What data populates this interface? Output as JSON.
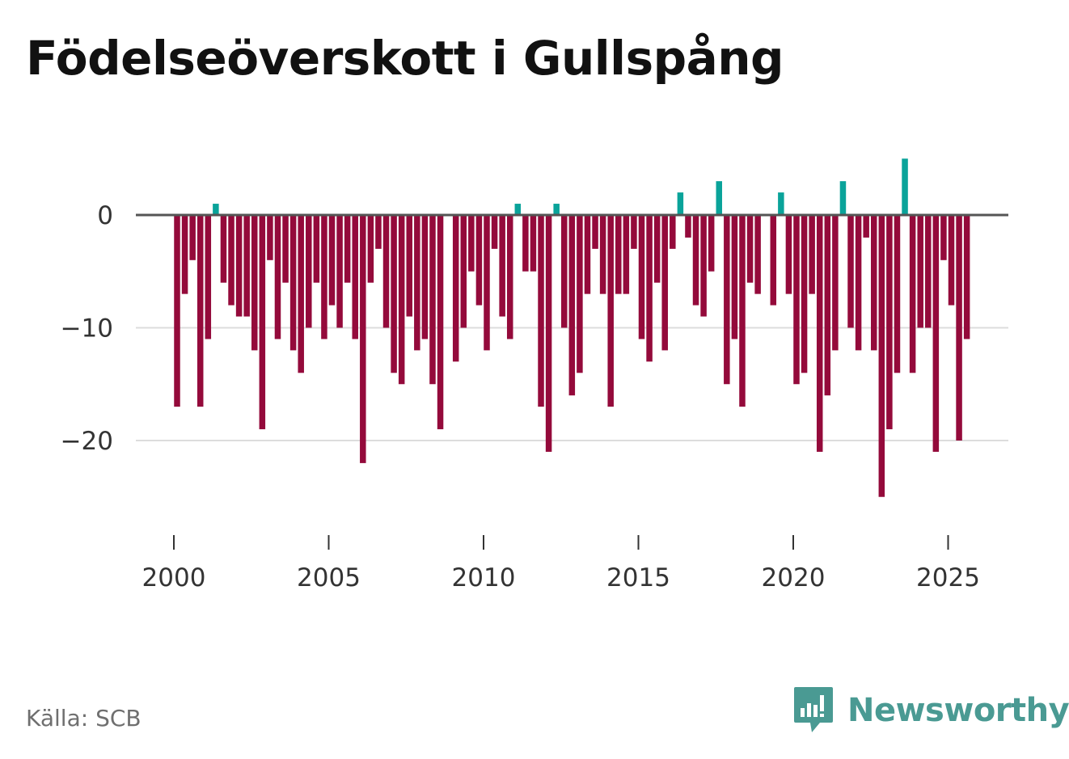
{
  "title": "Födelseöverskott i Gullspång",
  "source": "Källa: SCB",
  "brand": "Newsworthy",
  "colors": {
    "positive": "#0aa39a",
    "negative": "#940a3b",
    "zero_line": "#555555",
    "grid": "#dddddd",
    "brand": "#4a9a93"
  },
  "chart_data": {
    "type": "bar",
    "title": "Födelseöverskott i Gullspång",
    "xlabel": "",
    "ylabel": "",
    "x_ticks": [
      "2000",
      "2005",
      "2010",
      "2015",
      "2020",
      "2025"
    ],
    "y_ticks": [
      "0",
      "−10",
      "−20"
    ],
    "y_tick_values": [
      0,
      -10,
      -20
    ],
    "ylim": [
      -28,
      8
    ],
    "xlim": [
      1998.75,
      2027
    ],
    "period": "quarterly",
    "start": 2000.0,
    "step": 0.25,
    "values": [
      -17,
      -7,
      -4,
      -17,
      -11,
      1,
      -6,
      -8,
      -9,
      -9,
      -12,
      -19,
      -4,
      -11,
      -6,
      -12,
      -14,
      -10,
      -6,
      -11,
      -8,
      -10,
      -6,
      -11,
      -22,
      -6,
      -3,
      -10,
      -14,
      -15,
      -9,
      -12,
      -11,
      -15,
      -19,
      0,
      -13,
      -10,
      -5,
      -8,
      -12,
      -3,
      -9,
      -11,
      1,
      -5,
      -5,
      -17,
      -21,
      1,
      -10,
      -16,
      -14,
      -7,
      -3,
      -7,
      -17,
      -7,
      -7,
      -3,
      -11,
      -13,
      -6,
      -12,
      -3,
      2,
      -2,
      -8,
      -9,
      -5,
      3,
      -15,
      -11,
      -17,
      -6,
      -7,
      0,
      -8,
      2,
      -7,
      -15,
      -14,
      -7,
      -21,
      -16,
      -12,
      3,
      -10,
      -12,
      -2,
      -12,
      -25,
      -19,
      -14,
      5,
      -14,
      -10,
      -10,
      -21,
      -4,
      -8,
      -20,
      -11
    ]
  }
}
